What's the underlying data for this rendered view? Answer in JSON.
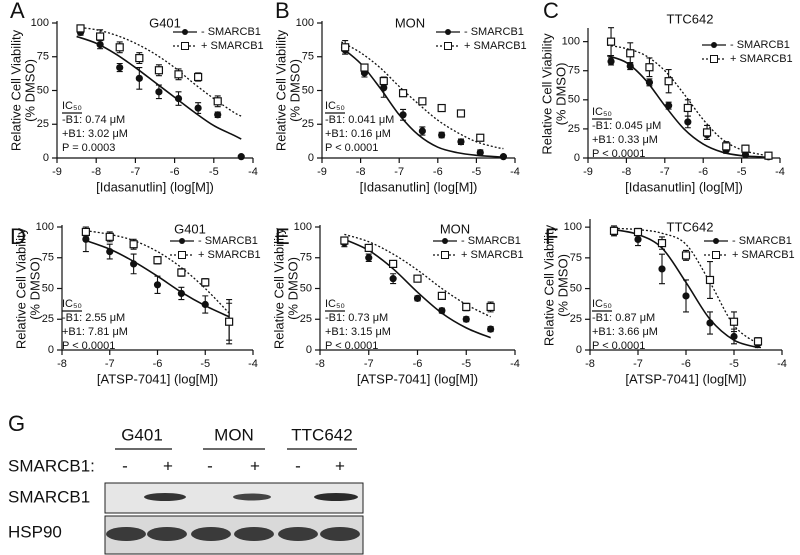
{
  "chart_data": [
    {
      "type": "line",
      "panel": "A",
      "title": "G401",
      "xlabel": "[Idasanutlin] (log[M])",
      "ylabel": [
        "Relative Cell Viability",
        "(% DMSO)"
      ],
      "xlim": [
        -9,
        -4
      ],
      "xticks": [
        -9,
        -8,
        -7,
        -6,
        -5,
        -4
      ],
      "ylim": [
        0,
        100
      ],
      "yticks": [
        0,
        25,
        50,
        75,
        100
      ],
      "legend": "upper right",
      "x": [
        -8.4,
        -7.9,
        -7.4,
        -6.9,
        -6.4,
        -5.9,
        -5.4,
        -4.9,
        -4.3
      ],
      "fit_x": [
        -8.5,
        -8,
        -7.5,
        -7,
        -6.5,
        -6,
        -5.5,
        -5,
        -4.5,
        -4.3
      ],
      "series": [
        {
          "name": "- SMARCB1",
          "color": "#111111",
          "marker": "circle",
          "line": "solid",
          "values": [
            93,
            84,
            67,
            59,
            49,
            44,
            37,
            32,
            1
          ],
          "errors": [
            2,
            3,
            3,
            8,
            5,
            5,
            4,
            2,
            1
          ],
          "fit": [
            90,
            85,
            77,
            67,
            56,
            45,
            34,
            24,
            17,
            14
          ]
        },
        {
          "name": "+ SMARCB1",
          "color": "#111111",
          "marker": "square",
          "line": "dotted",
          "values": [
            96,
            90,
            82,
            74,
            65,
            62,
            60,
            42,
            null
          ],
          "errors": [
            2,
            5,
            4,
            4,
            4,
            4,
            3,
            4,
            null
          ],
          "fit": [
            97,
            95,
            91,
            85,
            77,
            67,
            55,
            44,
            34,
            31
          ]
        }
      ],
      "annotations": [
        "IC₅₀",
        "-B1: 0.74 μM",
        "+B1: 3.02 μM",
        "P = 0.0003"
      ]
    },
    {
      "type": "line",
      "panel": "B",
      "title": "MON",
      "xlabel": "[Idasanutlin] (log[M])",
      "ylabel": [
        "Relative Cell Viability",
        "(% DMSO)"
      ],
      "xlim": [
        -9,
        -4
      ],
      "xticks": [
        -9,
        -8,
        -7,
        -6,
        -5,
        -4
      ],
      "ylim": [
        0,
        100
      ],
      "yticks": [
        0,
        25,
        50,
        75,
        100
      ],
      "legend": "upper right",
      "x": [
        -8.4,
        -7.9,
        -7.4,
        -6.9,
        -6.4,
        -5.9,
        -5.4,
        -4.9,
        -4.3
      ],
      "fit_x": [
        -8.5,
        -8,
        -7.5,
        -7,
        -6.5,
        -6,
        -5.5,
        -5,
        -4.5,
        -4.3
      ],
      "series": [
        {
          "name": "- SMARCB1",
          "color": "#111111",
          "marker": "circle",
          "line": "solid",
          "values": [
            80,
            63,
            52,
            32,
            20,
            17,
            12,
            4,
            1
          ],
          "errors": [
            3,
            3,
            7,
            4,
            3,
            2,
            2,
            2,
            1
          ],
          "fit": [
            82,
            70,
            52,
            32,
            17,
            8,
            4,
            2,
            1,
            0.5
          ]
        },
        {
          "name": "+ SMARCB1",
          "color": "#111111",
          "marker": "square",
          "line": "dotted",
          "values": [
            82,
            67,
            57,
            48,
            42,
            37,
            33,
            15,
            null
          ],
          "errors": [
            5,
            2,
            3,
            2,
            2,
            2,
            2,
            2,
            null
          ],
          "fit": [
            86,
            78,
            67,
            53,
            40,
            28,
            19,
            12,
            8,
            7
          ]
        }
      ],
      "annotations": [
        "IC₅₀",
        "-B1: 0.041 μM",
        "+B1: 0.16 μM",
        "P < 0.0001"
      ]
    },
    {
      "type": "line",
      "panel": "C",
      "title": "TTC642",
      "xlabel": "[Idasanutlin] (log[M])",
      "ylabel": [
        "Relative Cell Viability",
        "(% DMSO)"
      ],
      "xlim": [
        -9,
        -4
      ],
      "xticks": [
        -9,
        -8,
        -7,
        -6,
        -5,
        -4
      ],
      "ylim": [
        0,
        110
      ],
      "yticks": [
        0,
        25,
        50,
        75,
        100
      ],
      "legend": "upper right",
      "x": [
        -8.4,
        -7.9,
        -7.4,
        -6.9,
        -6.4,
        -5.9,
        -5.4,
        -4.9,
        -4.3
      ],
      "fit_x": [
        -8.5,
        -8,
        -7.5,
        -7,
        -6.5,
        -6,
        -5.5,
        -5,
        -4.5,
        -4.3
      ],
      "series": [
        {
          "name": "- SMARCB1",
          "color": "#111111",
          "marker": "circle",
          "line": "solid",
          "values": [
            83,
            79,
            65,
            45,
            31,
            20,
            7,
            3,
            1
          ],
          "errors": [
            3,
            3,
            3,
            3,
            5,
            4,
            3,
            2,
            1
          ],
          "fit": [
            88,
            82,
            67,
            45,
            25,
            12,
            5,
            2,
            1,
            0.5
          ]
        },
        {
          "name": "+ SMARCB1",
          "color": "#111111",
          "marker": "square",
          "line": "dotted",
          "values": [
            100,
            90,
            78,
            66,
            43,
            22,
            10,
            8,
            2
          ],
          "errors": [
            12,
            9,
            8,
            10,
            7,
            6,
            4,
            3,
            1
          ],
          "fit": [
            97,
            94,
            88,
            75,
            55,
            33,
            16,
            7,
            3,
            2
          ]
        }
      ],
      "annotations": [
        "IC₅₀",
        "-B1: 0.045 μM",
        "+B1: 0.33 μM",
        "P < 0.0001"
      ]
    },
    {
      "type": "line",
      "panel": "D",
      "title": "G401",
      "xlabel": "[ATSP-7041] (log[M])",
      "ylabel": [
        "Relative Cell Viability",
        "(% DMSO)"
      ],
      "xlim": [
        -8,
        -4
      ],
      "xticks": [
        -8,
        -7,
        -6,
        -5,
        -4
      ],
      "ylim": [
        0,
        100
      ],
      "yticks": [
        0,
        25,
        50,
        75,
        100
      ],
      "legend": "upper right",
      "x": [
        -7.5,
        -7,
        -6.5,
        -6,
        -5.5,
        -5,
        -4.5
      ],
      "fit_x": [
        -7.5,
        -7,
        -6.5,
        -6,
        -5.5,
        -5,
        -4.5
      ],
      "series": [
        {
          "name": "- SMARCB1",
          "color": "#111111",
          "marker": "circle",
          "line": "solid",
          "values": [
            90,
            80,
            70,
            53,
            46,
            37,
            23
          ],
          "errors": [
            10,
            6,
            8,
            7,
            5,
            7,
            15
          ],
          "fit": [
            89,
            82,
            72,
            60,
            47,
            36,
            27
          ]
        },
        {
          "name": "+ SMARCB1",
          "color": "#111111",
          "marker": "square",
          "line": "dotted",
          "values": [
            96,
            92,
            86,
            73,
            63,
            55,
            23
          ],
          "errors": [
            4,
            4,
            4,
            3,
            3,
            3,
            18
          ],
          "fit": [
            97,
            94,
            89,
            80,
            67,
            50,
            30
          ]
        }
      ],
      "annotations": [
        "IC₅₀",
        "-B1: 2.55 μM",
        "+B1: 7.81 μM",
        "P < 0.0001"
      ]
    },
    {
      "type": "line",
      "panel": "E",
      "title": "MON",
      "xlabel": "[ATSP-7041] (log[M])",
      "ylabel": [
        "Relative Cell Viability",
        "(% DMSO)"
      ],
      "xlim": [
        -8,
        -4
      ],
      "xticks": [
        -8,
        -7,
        -6,
        -5,
        -4
      ],
      "ylim": [
        0,
        100
      ],
      "yticks": [
        0,
        25,
        50,
        75,
        100
      ],
      "legend": "upper right",
      "x": [
        -7.5,
        -7,
        -6.5,
        -6,
        -5.5,
        -5,
        -4.5
      ],
      "fit_x": [
        -7.5,
        -7,
        -6.5,
        -6,
        -5.5,
        -5,
        -4.5
      ],
      "series": [
        {
          "name": "- SMARCB1",
          "color": "#111111",
          "marker": "circle",
          "line": "solid",
          "values": [
            87,
            75,
            58,
            42,
            32,
            25,
            17
          ],
          "errors": [
            3,
            3,
            4,
            2,
            2,
            2,
            2
          ],
          "fit": [
            90,
            81,
            66,
            47,
            30,
            18,
            10
          ]
        },
        {
          "name": "+ SMARCB1",
          "color": "#111111",
          "marker": "square",
          "line": "dotted",
          "values": [
            89,
            83,
            70,
            58,
            44,
            35,
            35
          ],
          "errors": [
            2,
            2,
            2,
            2,
            2,
            3,
            4
          ],
          "fit": [
            94,
            88,
            78,
            65,
            50,
            37,
            27
          ]
        }
      ],
      "annotations": [
        "IC₅₀",
        "-B1: 0.73 μM",
        "+B1: 3.15 μM",
        "P < 0.0001"
      ]
    },
    {
      "type": "line",
      "panel": "F",
      "title": "TTC642",
      "xlabel": "[ATSP-7041] (log[M])",
      "ylabel": [
        "Relative Cell Viability",
        "(% DMSO)"
      ],
      "xlim": [
        -8,
        -4
      ],
      "xticks": [
        -8,
        -7,
        -6,
        -5,
        -4
      ],
      "ylim": [
        0,
        105
      ],
      "yticks": [
        0,
        25,
        50,
        75,
        100
      ],
      "legend": "upper right",
      "x": [
        -7.5,
        -7,
        -6.5,
        -6,
        -5.5,
        -5,
        -4.5
      ],
      "fit_x": [
        -7.5,
        -7,
        -6.5,
        -6,
        -5.5,
        -5,
        -4.5
      ],
      "series": [
        {
          "name": "- SMARCB1",
          "color": "#111111",
          "marker": "circle",
          "line": "solid",
          "values": [
            96,
            90,
            66,
            44,
            22,
            11,
            5
          ],
          "errors": [
            3,
            5,
            12,
            13,
            9,
            6,
            3
          ],
          "fit": [
            98,
            94,
            83,
            55,
            25,
            8,
            2
          ]
        },
        {
          "name": "+ SMARCB1",
          "color": "#111111",
          "marker": "square",
          "line": "dotted",
          "values": [
            97,
            96,
            87,
            77,
            57,
            23,
            7
          ],
          "errors": [
            4,
            3,
            5,
            4,
            15,
            8,
            3
          ],
          "fit": [
            99,
            98,
            95,
            86,
            55,
            20,
            5
          ]
        }
      ],
      "annotations": [
        "IC₅₀",
        "-B1: 0.87 μM",
        "+B1: 3.66 μM",
        "P < 0.0001"
      ]
    }
  ],
  "blot": {
    "panel": "G",
    "cell_lines": [
      "G401",
      "MON",
      "TTC642"
    ],
    "row_label": "SMARCB1:",
    "conditions": [
      "-",
      "+",
      "-",
      "+",
      "-",
      "+"
    ],
    "proteins": [
      "SMARCB1",
      "HSP90"
    ]
  }
}
